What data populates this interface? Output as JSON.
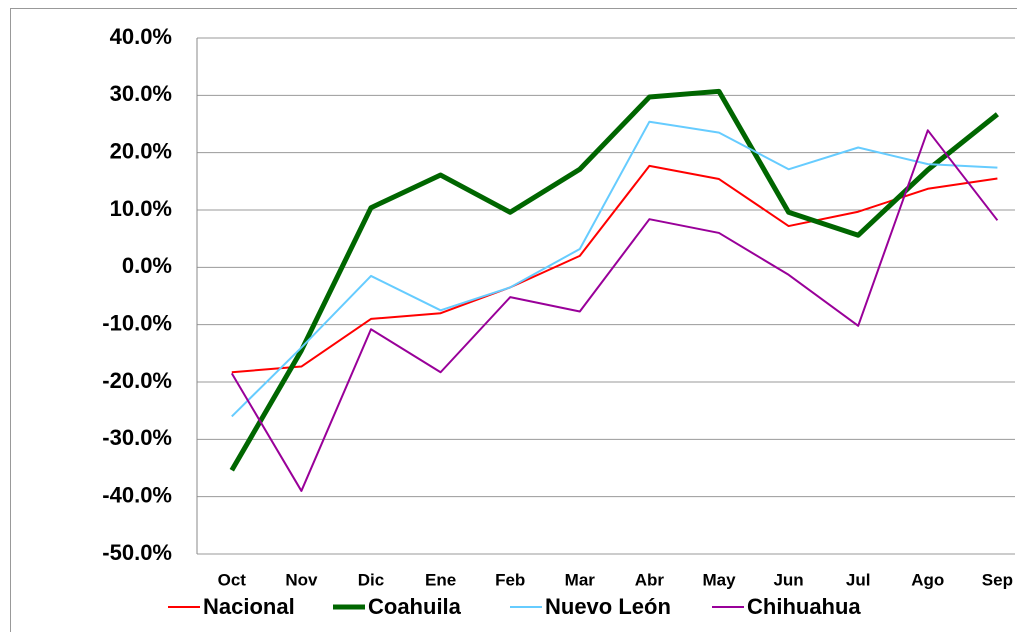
{
  "chart_data": {
    "type": "line",
    "categories": [
      "Oct",
      "Nov",
      "Dic",
      "Ene",
      "Feb",
      "Mar",
      "Abr",
      "May",
      "Jun",
      "Jul",
      "Ago",
      "Sep"
    ],
    "series": [
      {
        "name": "Nacional",
        "color": "#ff0000",
        "width": 2,
        "values": [
          -18.3,
          -17.3,
          -9.0,
          -8.0,
          -3.5,
          2.0,
          17.7,
          15.4,
          7.2,
          9.7,
          13.7,
          15.5
        ]
      },
      {
        "name": "Coahuila",
        "color": "#006600",
        "width": 5,
        "values": [
          -35.4,
          -14.5,
          10.4,
          16.1,
          9.6,
          17.1,
          29.7,
          30.7,
          9.6,
          5.6,
          17.0,
          26.7
        ]
      },
      {
        "name": "Nuevo León",
        "color": "#66ccff",
        "width": 2,
        "values": [
          -26.0,
          -14.0,
          -1.5,
          -7.5,
          -3.5,
          3.2,
          25.4,
          23.5,
          17.1,
          20.9,
          18.0,
          17.4
        ]
      },
      {
        "name": "Chihuahua",
        "color": "#990099",
        "width": 2,
        "values": [
          -18.5,
          -39.0,
          -10.8,
          -18.3,
          -5.2,
          -7.7,
          8.4,
          6.0,
          -1.3,
          -10.2,
          23.9,
          8.2
        ]
      }
    ],
    "ylim": [
      -50,
      40
    ],
    "yticks": [
      {
        "value": -50,
        "label": "-50.0%"
      },
      {
        "value": -40,
        "label": "-40.0%"
      },
      {
        "value": -30,
        "label": "-30.0%"
      },
      {
        "value": -20,
        "label": "-20.0%"
      },
      {
        "value": -10,
        "label": "-10.0%"
      },
      {
        "value": 0,
        "label": "0.0%"
      },
      {
        "value": 10,
        "label": "10.0%"
      },
      {
        "value": 20,
        "label": "20.0%"
      },
      {
        "value": 30,
        "label": "30.0%"
      },
      {
        "value": 40,
        "label": "40.0%"
      }
    ],
    "grid": true,
    "legend": "bottom"
  }
}
